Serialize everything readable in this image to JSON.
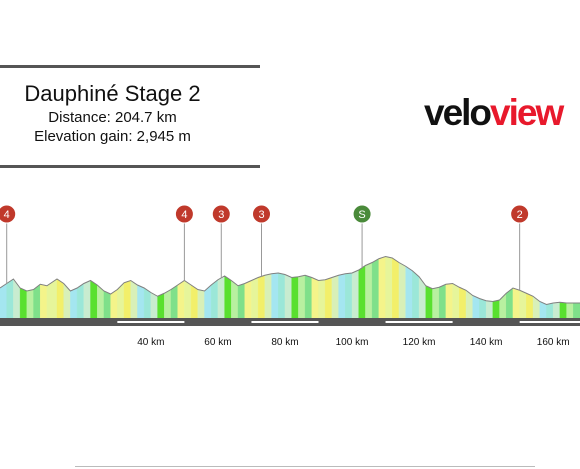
{
  "header": {
    "title": "Dauphiné Stage 2",
    "distance": "Distance: 204.7 km",
    "elevation_gain": "Elevation gain: 2,945 m"
  },
  "logo": {
    "part1": "velo",
    "part2": "view",
    "colors": {
      "velo": "#111111",
      "view": "#e8192c"
    }
  },
  "colors": {
    "climb_marker": "#c0392b",
    "sprint_marker": "#4a8a3a",
    "road": "#555555",
    "stroke": "#808080"
  },
  "chart_data": {
    "type": "area",
    "title": "",
    "xlabel": "",
    "ylabel": "",
    "x_unit": "km",
    "xlim": [
      -5,
      168
    ],
    "x_ticks": [
      {
        "value": 40,
        "label": "40 km"
      },
      {
        "value": 60,
        "label": "60 km"
      },
      {
        "value": 80,
        "label": "80 km"
      },
      {
        "value": 100,
        "label": "100 km"
      },
      {
        "value": 120,
        "label": "120 km"
      },
      {
        "value": 140,
        "label": "140 km"
      },
      {
        "value": 160,
        "label": "160 km"
      }
    ],
    "elevation_relative": [
      [
        -5,
        0.4
      ],
      [
        -3,
        0.46
      ],
      [
        -1,
        0.52
      ],
      [
        1,
        0.4
      ],
      [
        3,
        0.36
      ],
      [
        5,
        0.38
      ],
      [
        7,
        0.45
      ],
      [
        9,
        0.43
      ],
      [
        12,
        0.52
      ],
      [
        14,
        0.46
      ],
      [
        16,
        0.36
      ],
      [
        18,
        0.4
      ],
      [
        20,
        0.46
      ],
      [
        22,
        0.5
      ],
      [
        24,
        0.44
      ],
      [
        26,
        0.36
      ],
      [
        28,
        0.32
      ],
      [
        30,
        0.38
      ],
      [
        32,
        0.47
      ],
      [
        34,
        0.5
      ],
      [
        36,
        0.44
      ],
      [
        38,
        0.4
      ],
      [
        40,
        0.34
      ],
      [
        42,
        0.29
      ],
      [
        44,
        0.33
      ],
      [
        46,
        0.38
      ],
      [
        48,
        0.44
      ],
      [
        50,
        0.5
      ],
      [
        52,
        0.44
      ],
      [
        54,
        0.38
      ],
      [
        56,
        0.36
      ],
      [
        58,
        0.44
      ],
      [
        60,
        0.51
      ],
      [
        62,
        0.56
      ],
      [
        64,
        0.5
      ],
      [
        66,
        0.43
      ],
      [
        68,
        0.46
      ],
      [
        70,
        0.5
      ],
      [
        72,
        0.54
      ],
      [
        74,
        0.57
      ],
      [
        76,
        0.59
      ],
      [
        78,
        0.6
      ],
      [
        80,
        0.58
      ],
      [
        82,
        0.54
      ],
      [
        84,
        0.55
      ],
      [
        86,
        0.57
      ],
      [
        88,
        0.54
      ],
      [
        90,
        0.5
      ],
      [
        92,
        0.51
      ],
      [
        94,
        0.54
      ],
      [
        96,
        0.57
      ],
      [
        98,
        0.59
      ],
      [
        100,
        0.6
      ],
      [
        102,
        0.64
      ],
      [
        104,
        0.7
      ],
      [
        106,
        0.74
      ],
      [
        108,
        0.79
      ],
      [
        110,
        0.82
      ],
      [
        112,
        0.8
      ],
      [
        114,
        0.74
      ],
      [
        116,
        0.69
      ],
      [
        118,
        0.63
      ],
      [
        120,
        0.55
      ],
      [
        122,
        0.43
      ],
      [
        124,
        0.39
      ],
      [
        126,
        0.41
      ],
      [
        128,
        0.45
      ],
      [
        130,
        0.46
      ],
      [
        132,
        0.41
      ],
      [
        134,
        0.37
      ],
      [
        136,
        0.3
      ],
      [
        138,
        0.26
      ],
      [
        140,
        0.23
      ],
      [
        142,
        0.22
      ],
      [
        144,
        0.24
      ],
      [
        146,
        0.33
      ],
      [
        148,
        0.4
      ],
      [
        150,
        0.37
      ],
      [
        152,
        0.33
      ],
      [
        154,
        0.29
      ],
      [
        156,
        0.22
      ],
      [
        158,
        0.18
      ],
      [
        160,
        0.2
      ],
      [
        162,
        0.21
      ],
      [
        164,
        0.2
      ],
      [
        166,
        0.2
      ],
      [
        168,
        0.2
      ]
    ],
    "segment_colors": [
      "#9be7d8",
      "#b8f0a0",
      "#e6f59a",
      "#a4e6f0",
      "#59e02f",
      "#f4f48a",
      "#d8f0b8",
      "#c8ecd0",
      "#7fe08a",
      "#f2ef6a"
    ],
    "markers": [
      {
        "km": -3,
        "label": "4",
        "type": "climb"
      },
      {
        "km": 50,
        "label": "4",
        "type": "climb"
      },
      {
        "km": 61,
        "label": "3",
        "type": "climb"
      },
      {
        "km": 73,
        "label": "3",
        "type": "climb"
      },
      {
        "km": 103,
        "label": "S",
        "type": "sprint"
      },
      {
        "km": 150,
        "label": "2",
        "type": "climb"
      }
    ]
  }
}
